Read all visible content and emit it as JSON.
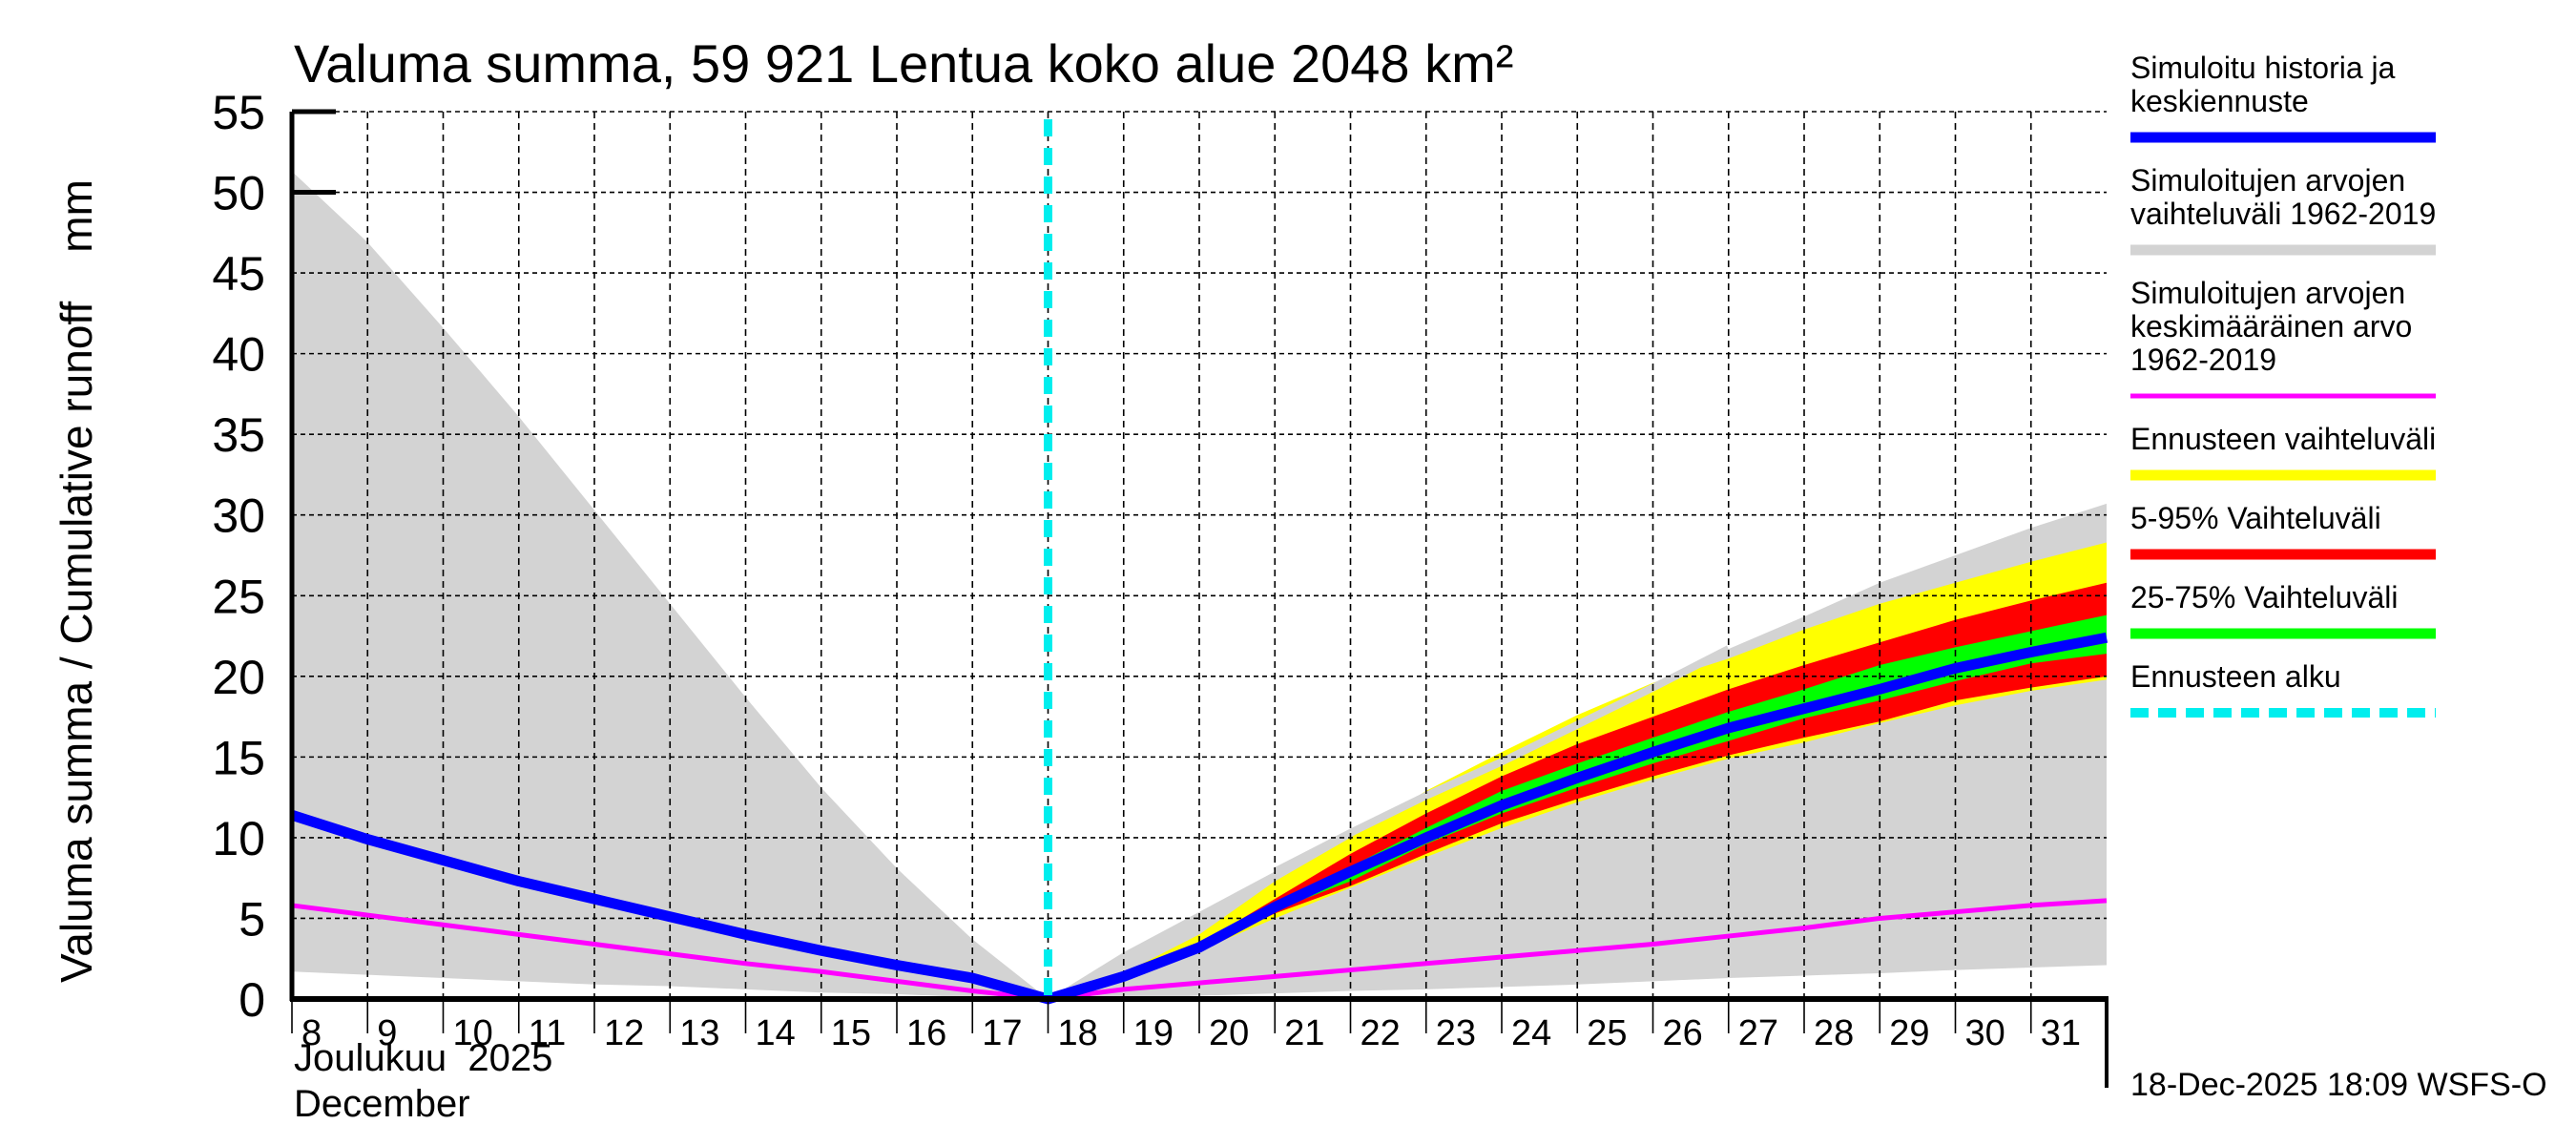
{
  "chart_data": {
    "type": "area",
    "title": "Valuma summa, 59 921 Lentua koko alue 2048 km²",
    "ylabel": "Valuma summa / Cumulative runoff    mm",
    "xlabel_line1": "Joulukuu  2025",
    "xlabel_line2": "December",
    "ylim": [
      0,
      55
    ],
    "xlim": [
      8,
      32
    ],
    "y_ticks": [
      0,
      5,
      10,
      15,
      20,
      25,
      30,
      35,
      40,
      45,
      50,
      55
    ],
    "x_tick_labels": [
      "8",
      "9",
      "10",
      "11",
      "12",
      "13",
      "14",
      "15",
      "16",
      "17",
      "18",
      "19",
      "20",
      "21",
      "22",
      "23",
      "24",
      "25",
      "26",
      "27",
      "28",
      "29",
      "30",
      "31"
    ],
    "grid": true,
    "legend_position": "right",
    "forecast_start_day": 18,
    "footer": "18-Dec-2025 18:09 WSFS-O",
    "colors": {
      "history_mean": "#0000ff",
      "hist_range": "#d3d3d3",
      "hist_mean": "#ff00ff",
      "forecast_range": "#ffff00",
      "p5_95": "#ff0000",
      "p25_75": "#00ff00",
      "forecast_start": "#00eeee"
    },
    "series": [
      {
        "name": "Simuloitujen arvojen vaihteluväli 1962-2019",
        "kind": "band",
        "color_key": "hist_range",
        "x": [
          8,
          9,
          10,
          11,
          12,
          13,
          14,
          15,
          16,
          17,
          18,
          19,
          20,
          21,
          22,
          23,
          24,
          25,
          26,
          27,
          28,
          29,
          30,
          31,
          32
        ],
        "upper": [
          51.3,
          46.9,
          41.6,
          36.1,
          30.3,
          24.5,
          18.7,
          13.1,
          8.1,
          3.7,
          0,
          2.9,
          5.4,
          7.9,
          10.3,
          12.6,
          14.7,
          17.0,
          19.3,
          21.7,
          23.7,
          25.8,
          27.5,
          29.2,
          30.7
        ],
        "lower": [
          1.7,
          1.5,
          1.3,
          1.1,
          0.9,
          0.8,
          0.6,
          0.4,
          0.3,
          0.1,
          0,
          0.05,
          0.2,
          0.35,
          0.5,
          0.6,
          0.75,
          0.9,
          1.1,
          1.3,
          1.45,
          1.6,
          1.8,
          1.95,
          2.1
        ]
      },
      {
        "name": "Ennusteen vaihteluväli",
        "kind": "band",
        "color_key": "forecast_range",
        "x": [
          18,
          19,
          20,
          21,
          22,
          23,
          24,
          25,
          26,
          27,
          28,
          29,
          30,
          31,
          32
        ],
        "upper": [
          0,
          1.6,
          4.0,
          7.3,
          10.0,
          12.9,
          15.3,
          17.6,
          19.6,
          21.1,
          22.9,
          24.5,
          25.8,
          27.1,
          28.3
        ],
        "lower": [
          0,
          1.3,
          3.0,
          5.0,
          6.9,
          8.8,
          10.6,
          12.2,
          13.6,
          14.9,
          15.9,
          17.1,
          18.2,
          19.1,
          19.8
        ]
      },
      {
        "name": "5-95% Vaihteluväli",
        "kind": "band",
        "color_key": "p5_95",
        "x": [
          18,
          19,
          20,
          21,
          22,
          23,
          24,
          25,
          26,
          27,
          28,
          29,
          30,
          31,
          32
        ],
        "upper": [
          0,
          1.5,
          3.4,
          6.2,
          9.0,
          11.5,
          13.8,
          15.8,
          17.5,
          19.2,
          20.7,
          22.1,
          23.5,
          24.7,
          25.8
        ],
        "lower": [
          0,
          1.4,
          3.1,
          5.3,
          7.0,
          9.0,
          10.9,
          12.4,
          13.8,
          15.1,
          16.2,
          17.2,
          18.5,
          19.3,
          20.0
        ]
      },
      {
        "name": "25-75% Vaihteluväli",
        "kind": "band",
        "color_key": "p25_75",
        "x": [
          18,
          19,
          20,
          21,
          22,
          23,
          24,
          25,
          26,
          27,
          28,
          29,
          30,
          31,
          32
        ],
        "upper": [
          0,
          1.45,
          3.3,
          5.9,
          8.2,
          10.6,
          12.9,
          14.6,
          16.2,
          17.8,
          19.2,
          20.7,
          21.8,
          22.8,
          23.8
        ],
        "lower": [
          0,
          1.4,
          3.2,
          5.5,
          7.3,
          9.6,
          11.5,
          13.1,
          14.6,
          16.0,
          17.4,
          18.5,
          19.7,
          20.8,
          21.4
        ]
      },
      {
        "name": "Simuloitujen arvojen keskimääräinen arvo 1962-2019",
        "kind": "line",
        "color_key": "hist_mean",
        "x": [
          8,
          9,
          10,
          11,
          12,
          13,
          14,
          15,
          16,
          17,
          18,
          19,
          20,
          21,
          22,
          23,
          24,
          25,
          26,
          27,
          28,
          29,
          30,
          31,
          32
        ],
        "values": [
          5.8,
          5.2,
          4.6,
          4.0,
          3.4,
          2.8,
          2.2,
          1.7,
          1.1,
          0.5,
          0,
          0.6,
          1.0,
          1.4,
          1.8,
          2.2,
          2.6,
          3.0,
          3.4,
          3.9,
          4.4,
          5.0,
          5.4,
          5.8,
          6.1
        ]
      },
      {
        "name": "Simuloitu historia ja keskiennuste",
        "kind": "line",
        "color_key": "history_mean",
        "x": [
          8,
          9,
          10,
          11,
          12,
          13,
          14,
          15,
          16,
          17,
          18,
          19,
          20,
          21,
          22,
          23,
          24,
          25,
          26,
          27,
          28,
          29,
          30,
          31,
          32
        ],
        "values": [
          11.4,
          9.9,
          8.6,
          7.3,
          6.2,
          5.1,
          4.0,
          3.0,
          2.1,
          1.3,
          0,
          1.4,
          3.2,
          5.7,
          7.9,
          10.0,
          12.0,
          13.7,
          15.3,
          16.8,
          18.0,
          19.2,
          20.5,
          21.5,
          22.4
        ]
      }
    ]
  },
  "legend": [
    {
      "lines": [
        "Simuloitu historia ja",
        "keskiennuste"
      ],
      "color_key": "history_mean",
      "style": "solid-thick",
      "name": "legend-history-mean"
    },
    {
      "lines": [
        "Simuloitujen arvojen",
        "vaihteluväli 1962-2019"
      ],
      "color_key": "hist_range",
      "style": "solid-thick",
      "name": "legend-hist-range"
    },
    {
      "lines": [
        "Simuloitujen arvojen",
        "keskimääräinen arvo",
        "   1962-2019"
      ],
      "color_key": "hist_mean",
      "style": "solid-thin",
      "name": "legend-hist-mean"
    },
    {
      "lines": [
        "Ennusteen vaihteluväli"
      ],
      "color_key": "forecast_range",
      "style": "solid-thick",
      "name": "legend-forecast-range"
    },
    {
      "lines": [
        "5-95% Vaihteluväli"
      ],
      "color_key": "p5_95",
      "style": "solid-thick",
      "name": "legend-p5-95"
    },
    {
      "lines": [
        "25-75% Vaihteluväli"
      ],
      "color_key": "p25_75",
      "style": "solid-thick",
      "name": "legend-p25-75"
    },
    {
      "lines": [
        "Ennusteen alku"
      ],
      "color_key": "forecast_start",
      "style": "dashed",
      "name": "legend-forecast-start"
    }
  ]
}
